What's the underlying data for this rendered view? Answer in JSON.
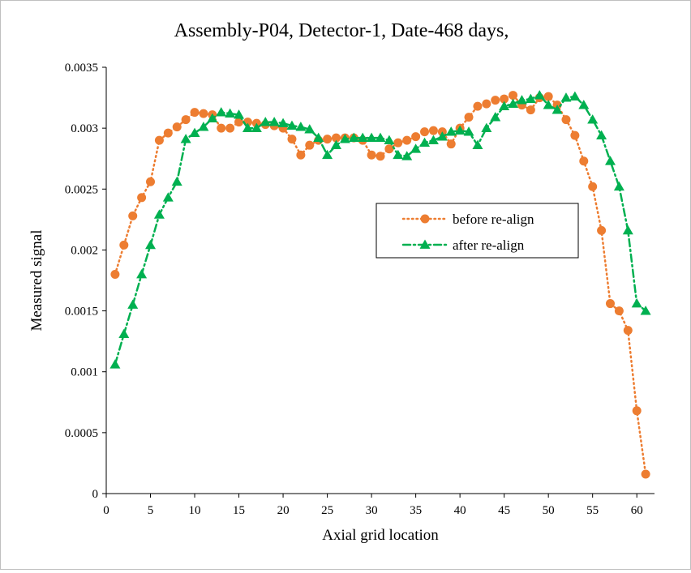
{
  "chart_data": {
    "type": "line",
    "title": "Assembly-P04,  Detector-1,  Date-468  days,",
    "xlabel": "Axial grid location",
    "ylabel": "Measured signal",
    "xlim": [
      0,
      62
    ],
    "ylim": [
      0,
      0.0035
    ],
    "x_ticks": [
      0,
      5,
      10,
      15,
      20,
      25,
      30,
      35,
      40,
      45,
      50,
      55,
      60
    ],
    "y_ticks": [
      "0",
      "0.0005",
      "0.001",
      "0.0015",
      "0.002",
      "0.0025",
      "0.003",
      "0.0035"
    ],
    "grid": false,
    "legend_position": "center-right",
    "series": [
      {
        "name": "before re-align",
        "color": "#ED7D31",
        "marker": "circle",
        "line_style": "dotted",
        "x": [
          1,
          2,
          3,
          4,
          5,
          6,
          7,
          8,
          9,
          10,
          11,
          12,
          13,
          14,
          15,
          16,
          17,
          18,
          19,
          20,
          21,
          22,
          23,
          24,
          25,
          26,
          27,
          28,
          29,
          30,
          31,
          32,
          33,
          34,
          35,
          36,
          37,
          38,
          39,
          40,
          41,
          42,
          43,
          44,
          45,
          46,
          47,
          48,
          49,
          50,
          51,
          52,
          53,
          54,
          55,
          56,
          57,
          58,
          59,
          60,
          61
        ],
        "y": [
          0.0018,
          0.00204,
          0.00228,
          0.00243,
          0.00256,
          0.0029,
          0.00296,
          0.00301,
          0.00307,
          0.00313,
          0.00312,
          0.00311,
          0.003,
          0.003,
          0.00305,
          0.00305,
          0.00304,
          0.00303,
          0.00302,
          0.003,
          0.00291,
          0.00278,
          0.00286,
          0.0029,
          0.00291,
          0.00292,
          0.00292,
          0.00292,
          0.0029,
          0.00278,
          0.00277,
          0.00283,
          0.00288,
          0.0029,
          0.00293,
          0.00297,
          0.00298,
          0.00297,
          0.00287,
          0.003,
          0.00309,
          0.00318,
          0.0032,
          0.00323,
          0.00324,
          0.00327,
          0.00319,
          0.00315,
          0.00325,
          0.00326,
          0.00319,
          0.00307,
          0.00294,
          0.00273,
          0.00252,
          0.00216,
          0.00156,
          0.0015,
          0.00134,
          0.00068,
          0.00016
        ]
      },
      {
        "name": "after re-align",
        "color": "#00B050",
        "marker": "triangle",
        "line_style": "dash-dot",
        "x": [
          1,
          2,
          3,
          4,
          5,
          6,
          7,
          8,
          9,
          10,
          11,
          12,
          13,
          14,
          15,
          16,
          17,
          18,
          19,
          20,
          21,
          22,
          23,
          24,
          25,
          26,
          27,
          28,
          29,
          30,
          31,
          32,
          33,
          34,
          35,
          36,
          37,
          38,
          39,
          40,
          41,
          42,
          43,
          44,
          45,
          46,
          47,
          48,
          49,
          50,
          51,
          52,
          53,
          54,
          55,
          56,
          57,
          58,
          59,
          60,
          61
        ],
        "y": [
          0.00106,
          0.00131,
          0.00155,
          0.0018,
          0.00204,
          0.00229,
          0.00243,
          0.00256,
          0.00291,
          0.00296,
          0.00301,
          0.00308,
          0.00313,
          0.00312,
          0.00311,
          0.003,
          0.003,
          0.00305,
          0.00305,
          0.00304,
          0.00302,
          0.00301,
          0.00299,
          0.00292,
          0.00278,
          0.00286,
          0.00291,
          0.00292,
          0.00292,
          0.00292,
          0.00292,
          0.0029,
          0.00278,
          0.00277,
          0.00283,
          0.00288,
          0.0029,
          0.00293,
          0.00297,
          0.00298,
          0.00297,
          0.00286,
          0.003,
          0.00309,
          0.00318,
          0.0032,
          0.00323,
          0.00324,
          0.00327,
          0.00319,
          0.00315,
          0.00325,
          0.00326,
          0.00319,
          0.00307,
          0.00294,
          0.00273,
          0.00252,
          0.00216,
          0.00156,
          0.0015
        ]
      }
    ]
  }
}
